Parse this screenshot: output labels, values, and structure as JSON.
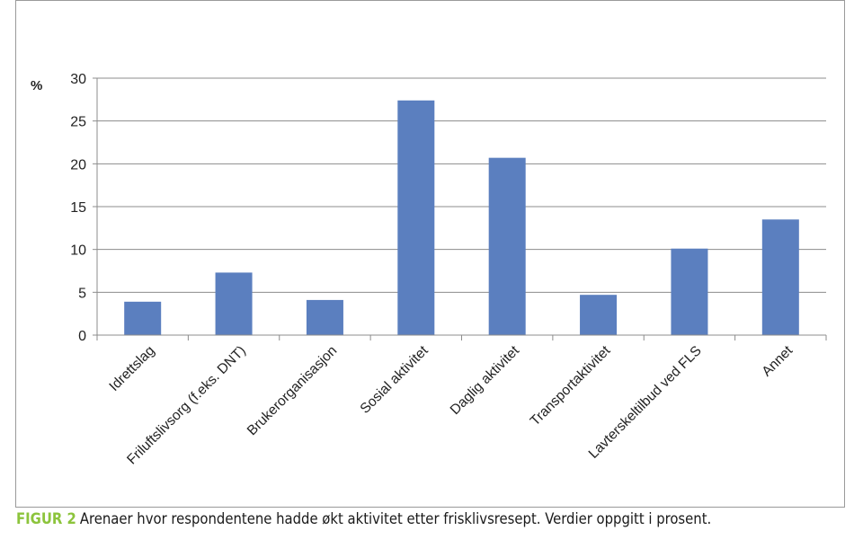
{
  "caption": {
    "label": "FIGUR 2",
    "text": "Arenaer hvor respondentene hadde økt aktivitet etter frisklivsresept. Verdier oppgitt i prosent."
  },
  "chart_data": {
    "type": "bar",
    "title": "",
    "xlabel": "",
    "ylabel": "%",
    "ylim": [
      0,
      30
    ],
    "yticks": [
      0,
      5,
      10,
      15,
      20,
      25,
      30
    ],
    "grid": true,
    "bar_color": "#5b7fbf",
    "categories": [
      "Idrettslag",
      "Friluftslivsorg (f.eks. DNT)",
      "Brukerorganisasjon",
      "Sosial aktivitet",
      "Daglig aktivitet",
      "Transportaktivitet",
      "Lavterskeltilbud ved FLS",
      "Annet"
    ],
    "values": [
      3.9,
      7.3,
      4.1,
      27.4,
      20.7,
      4.7,
      10.1,
      13.5
    ]
  }
}
